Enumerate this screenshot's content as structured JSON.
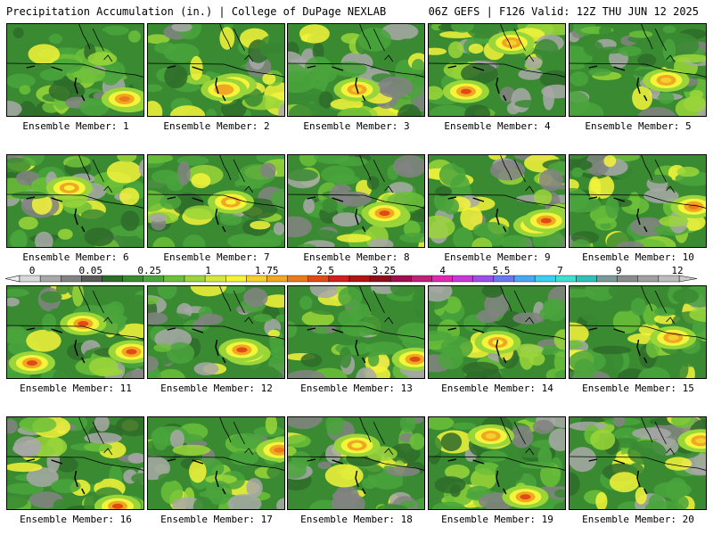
{
  "header": {
    "left_title": "Precipitation Accumulation (in.) | College of DuPage NEXLAB",
    "right_title": "06Z GEFS | F126 Valid: 12Z THU JUN 12 2025"
  },
  "colorbar": {
    "tick_labels": [
      "0",
      "0.05",
      "0.25",
      "1",
      "1.75",
      "2.5",
      "3.25",
      "4",
      "5.5",
      "7",
      "9",
      "12"
    ],
    "colors": [
      "#d8d8d8",
      "#a8a8a8",
      "#828282",
      "#5a5a5a",
      "#2e6b2a",
      "#3a8a32",
      "#4aa53c",
      "#6cc039",
      "#9ad63a",
      "#d6e83c",
      "#f4f43a",
      "#f4d02e",
      "#f0a822",
      "#ea7a1a",
      "#e04a14",
      "#d21e1e",
      "#b01414",
      "#8e0e1e",
      "#a01050",
      "#c0207a",
      "#e028b0",
      "#c838d8",
      "#9a50e8",
      "#6a78f0",
      "#48a8f4",
      "#38d0f0",
      "#40e0d0",
      "#30c0b8",
      "#7a9a9a",
      "#8c8c8c",
      "#a0a0a0",
      "#bcbcbc"
    ]
  },
  "panels": [
    {
      "label": "Ensemble Member: 1"
    },
    {
      "label": "Ensemble Member: 2"
    },
    {
      "label": "Ensemble Member: 3"
    },
    {
      "label": "Ensemble Member: 4"
    },
    {
      "label": "Ensemble Member: 5"
    },
    {
      "label": "Ensemble Member: 6"
    },
    {
      "label": "Ensemble Member: 7"
    },
    {
      "label": "Ensemble Member: 8"
    },
    {
      "label": "Ensemble Member: 9"
    },
    {
      "label": "Ensemble Member: 10"
    },
    {
      "label": "Ensemble Member: 11"
    },
    {
      "label": "Ensemble Member: 12"
    },
    {
      "label": "Ensemble Member: 13"
    },
    {
      "label": "Ensemble Member: 14"
    },
    {
      "label": "Ensemble Member: 15"
    },
    {
      "label": "Ensemble Member: 16"
    },
    {
      "label": "Ensemble Member: 17"
    },
    {
      "label": "Ensemble Member: 18"
    },
    {
      "label": "Ensemble Member: 19"
    },
    {
      "label": "Ensemble Member: 20"
    }
  ]
}
